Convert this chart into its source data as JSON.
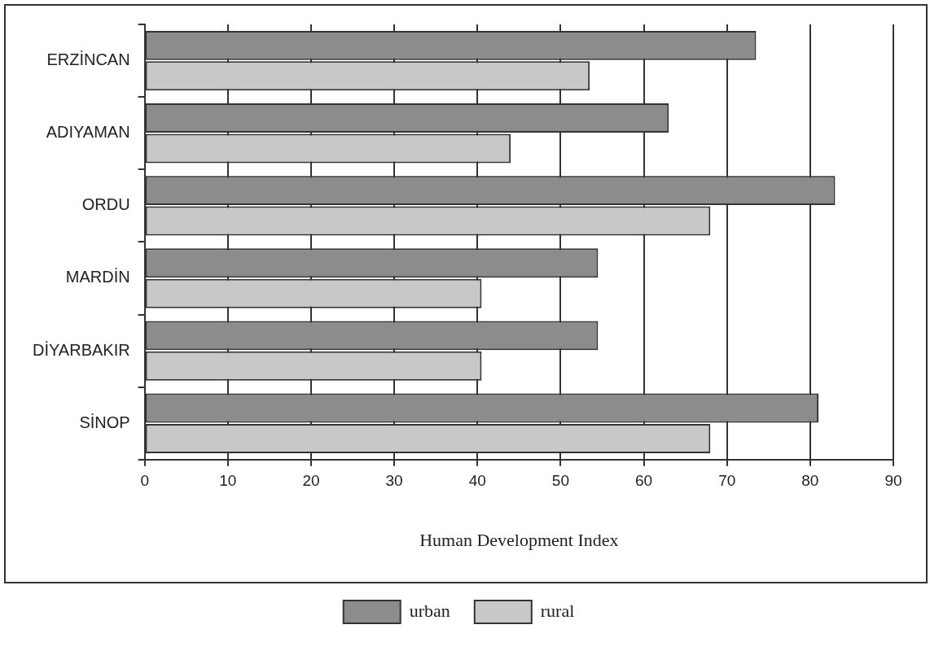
{
  "chart_data": {
    "type": "bar",
    "orientation": "horizontal",
    "xlabel": "Human Development Index",
    "categories": [
      "ERZİNCAN",
      "ADIYAMAN",
      "ORDU",
      "MARDİN",
      "DİYARBAKIR",
      "SİNOP"
    ],
    "series": [
      {
        "name": "urban",
        "color": "#8c8c8c",
        "values": [
          73.5,
          63,
          83,
          54.5,
          54.5,
          81
        ]
      },
      {
        "name": "rural",
        "color": "#c8c8c8",
        "values": [
          53.5,
          44,
          68,
          40.5,
          40.5,
          68
        ]
      }
    ],
    "xlim": [
      0,
      90
    ],
    "xticks": [
      0,
      10,
      20,
      30,
      40,
      50,
      60,
      70,
      80,
      90
    ],
    "grid": "x",
    "legend": "bottom"
  }
}
